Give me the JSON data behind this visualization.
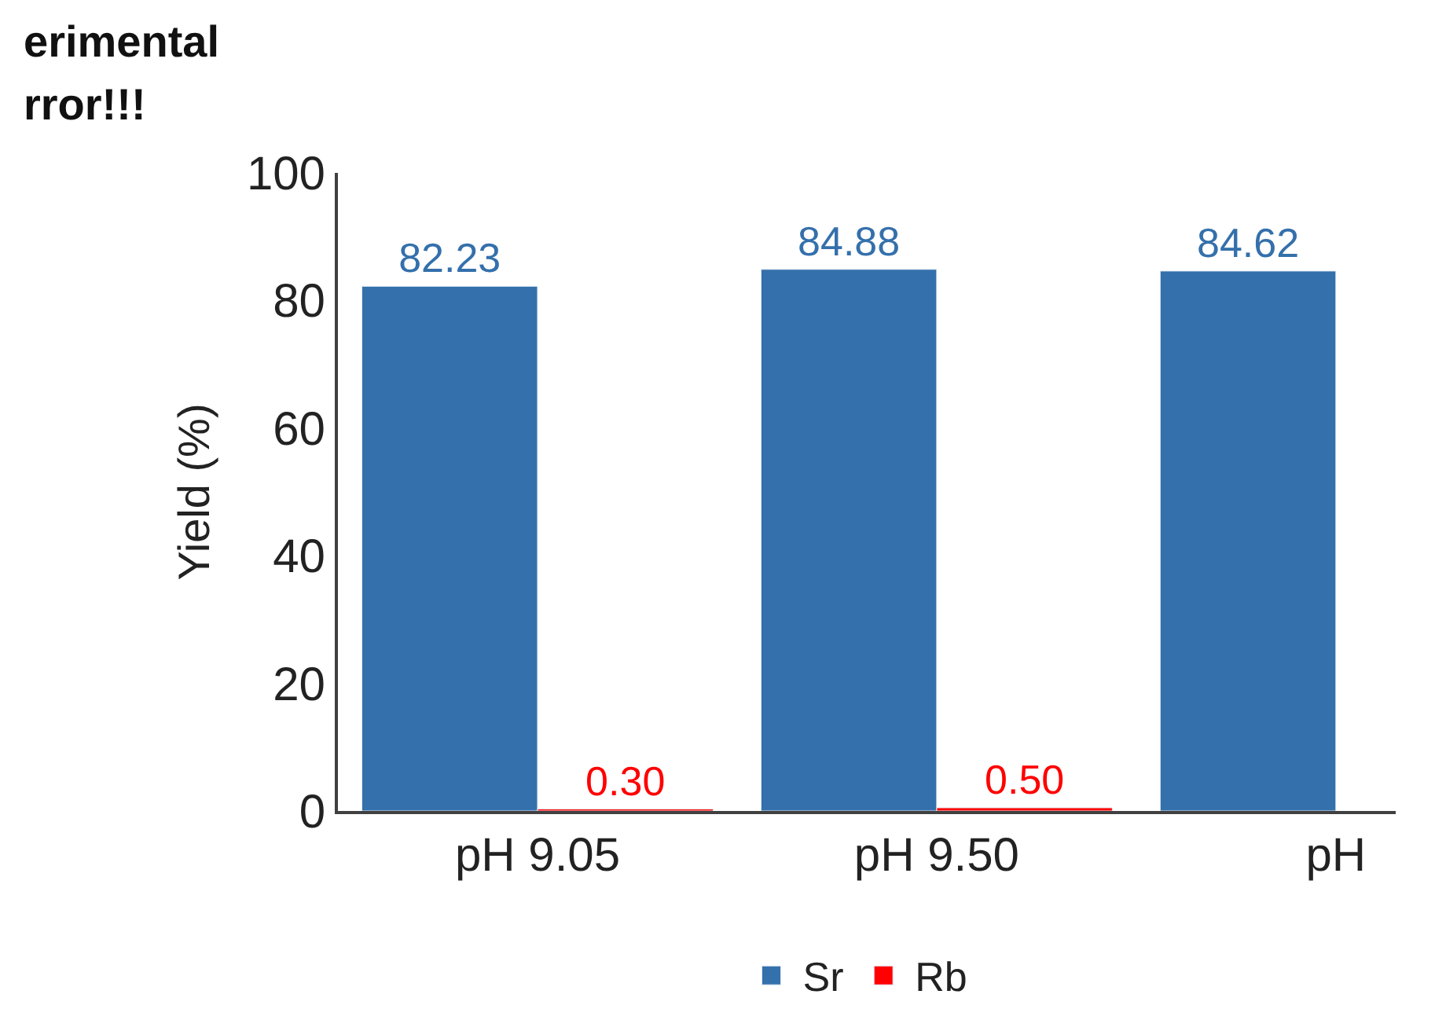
{
  "chart_data": {
    "type": "bar",
    "ylabel": "Yield (%)",
    "categories": [
      "pH 9.05",
      "pH 9.50",
      "pH"
    ],
    "series": [
      {
        "name": "Sr",
        "color": "#3470ab",
        "values": [
          82.23,
          84.88,
          84.62
        ],
        "value_labels": [
          "82.23",
          "84.88",
          "84.62"
        ]
      },
      {
        "name": "Rb",
        "color": "#ff0000",
        "values": [
          0.3,
          0.5,
          null
        ],
        "value_labels": [
          "0.30",
          "0.50",
          null
        ]
      }
    ],
    "ylim": [
      0,
      100
    ],
    "yticks": [
      0,
      20,
      40,
      60,
      80,
      100
    ],
    "legend": "bottom",
    "annotations": [
      "erimental",
      "rror!!!"
    ]
  }
}
